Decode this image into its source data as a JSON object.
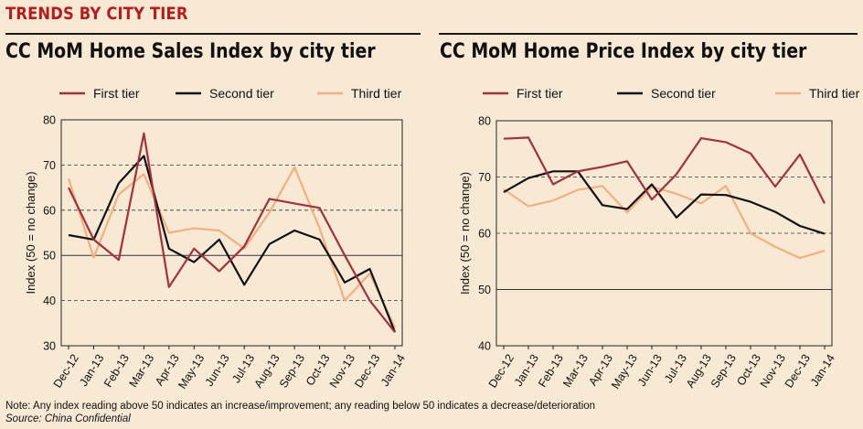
{
  "header": "TRENDS BY CITY TIER",
  "colors": {
    "first": "#a3303a",
    "second": "#111111",
    "third": "#f2b07e"
  },
  "chart_data": [
    {
      "type": "line",
      "title": "CC MoM Home Sales Index by city tier",
      "ylabel": "Index (50 = no change)",
      "ylim": [
        30,
        80
      ],
      "yticks": [
        30,
        40,
        50,
        60,
        70,
        80
      ],
      "categories": [
        "Dec-12",
        "Jan-13",
        "Feb-13",
        "Mar-13",
        "Apr-13",
        "May-13",
        "Jun-13",
        "Jul-13",
        "Aug-13",
        "Sep-13",
        "Oct-13",
        "Nov-13",
        "Dec-13",
        "Jan-14"
      ],
      "series": [
        {
          "name": "First tier",
          "values": [
            65,
            53.5,
            49,
            77,
            43,
            51.5,
            46.5,
            52,
            62.5,
            61.5,
            60.5,
            50,
            40,
            33
          ]
        },
        {
          "name": "Second tier",
          "values": [
            54.5,
            53.5,
            66,
            72,
            51.5,
            48.5,
            53.5,
            43.5,
            52.5,
            55.5,
            53.5,
            44,
            47,
            33
          ]
        },
        {
          "name": "Third tier",
          "values": [
            67,
            49.5,
            63.5,
            68,
            55,
            56,
            55.5,
            51.5,
            59.5,
            69.5,
            56,
            40,
            46,
            34
          ]
        }
      ],
      "legend": "top"
    },
    {
      "type": "line",
      "title": "CC MoM Home Price Index by city tier",
      "ylabel": "Index (50 = no change)",
      "ylim": [
        40,
        80
      ],
      "yticks": [
        40,
        50,
        60,
        70,
        80
      ],
      "categories": [
        "Dec-12",
        "Jan-13",
        "Feb-13",
        "Mar-13",
        "Apr-13",
        "May-13",
        "Jun-13",
        "Jul-13",
        "Aug-13",
        "Sep-13",
        "Oct-13",
        "Nov-13",
        "Dec-13",
        "Jan-14"
      ],
      "series": [
        {
          "name": "First tier",
          "values": [
            76.8,
            77,
            68.7,
            71,
            71.8,
            72.8,
            66,
            70.5,
            76.9,
            76.2,
            74.2,
            68.3,
            74,
            65.3
          ]
        },
        {
          "name": "Second tier",
          "values": [
            67.3,
            69.8,
            71,
            71,
            65,
            64.3,
            68.7,
            62.8,
            66.9,
            66.8,
            65.6,
            63.8,
            61.3,
            59.9
          ]
        },
        {
          "name": "Third tier",
          "values": [
            67.8,
            64.8,
            65.8,
            67.7,
            68.4,
            63.7,
            68.3,
            67,
            65.3,
            68.4,
            60,
            57.6,
            55.6,
            56.9
          ]
        }
      ],
      "legend": "top"
    }
  ],
  "note": "Note: Any index reading above 50 indicates an increase/improvement; any reading below 50 indicates a decrease/deterioration",
  "source": "Source: China Confidential"
}
